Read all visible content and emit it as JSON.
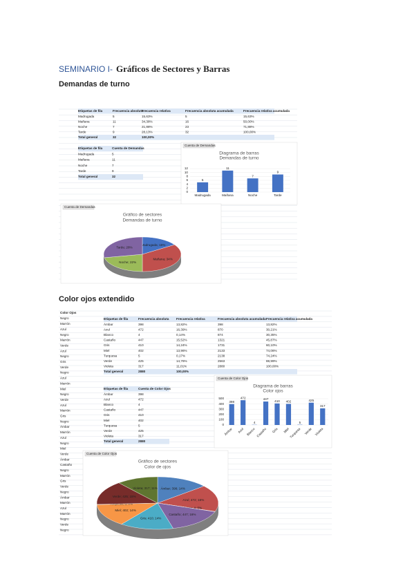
{
  "header": {
    "title_prefix": "SEMINARIO I-",
    "title": "Gráficos de Sectores y Barras"
  },
  "section1": {
    "heading": "Demandas de turno",
    "freq_table": {
      "columns": [
        "Etiquetas de fila",
        "Frecuencia absoluta",
        "Frecuencia relativa",
        "Frecuencia absoluta acumulada",
        "Frecuencia relativa acumulada"
      ],
      "rows": [
        [
          "Madrugada",
          5,
          "15,63%",
          5,
          "15,63%"
        ],
        [
          "Mañana",
          11,
          "34,38%",
          16,
          "50,00%"
        ],
        [
          "Noche",
          7,
          "21,88%",
          23,
          "71,88%"
        ],
        [
          "Tarde",
          9,
          "28,13%",
          32,
          "100,00%"
        ]
      ],
      "total": [
        "Total general",
        32,
        "100,00%"
      ]
    },
    "count_table": {
      "columns": [
        "Etiquetas de fila",
        "Cuenta de Demandas"
      ],
      "rows": [
        [
          "Madrugada",
          5
        ],
        [
          "Mañana",
          11
        ],
        [
          "Noche",
          7
        ],
        [
          "Tarde",
          9
        ]
      ],
      "total": [
        "Total general",
        32
      ]
    },
    "bar_chart": {
      "tab": "Cuenta de Demandas",
      "title": "Diagrama de barras",
      "subtitle": "Demandas de turno",
      "ylim": [
        0,
        12
      ],
      "yticks": [
        0,
        2,
        4,
        6,
        8,
        10,
        12
      ]
    },
    "pie_chart": {
      "tab": "Cuenta de Demandas",
      "title": "Gráfico de sectores",
      "subtitle": "Demandas de turno",
      "slice_labels": [
        "Madrugada; 16%",
        "Mañana; 34%",
        "Noche; 22%",
        "Tarde; 28%"
      ]
    }
  },
  "section2": {
    "heading": "Color ojos extendido",
    "raw_column": {
      "header": "Color Ojos",
      "values": [
        "Negro",
        "Marrón",
        "Azul",
        "Negro",
        "Marrón",
        "Verde",
        "Azul",
        "Negro",
        "Gris",
        "Verde",
        "Negro",
        "Azul",
        "Marrón",
        "Miel",
        "Negro",
        "Verde",
        "Azul",
        "Marrón",
        "Gris",
        "Negro",
        "Ámbar",
        "Marrón",
        "Azul",
        "Negro",
        "Miel",
        "Verde",
        "Ámbar",
        "Castaño",
        "Negro",
        "Marrón",
        "Gris",
        "Verde",
        "Negro",
        "Ámbar",
        "Marrón",
        "Azul",
        "Marrón",
        "Negro",
        "Verde",
        "Negro"
      ]
    },
    "freq_table": {
      "columns": [
        "Etiquetas de fila",
        "Frecuencia absoluta",
        "Frecuencia relativa",
        "Frecuencia absoluta acumulada",
        "Frecuencia relativa acumulada"
      ],
      "rows": [
        [
          "Ámbar",
          398,
          "13,82%",
          398,
          "13,82%"
        ],
        [
          "Azul",
          472,
          "16,39%",
          870,
          "30,21%"
        ],
        [
          "Blanco",
          4,
          "0,14%",
          874,
          "30,35%"
        ],
        [
          "Castaño",
          447,
          "15,52%",
          1321,
          "45,87%"
        ],
        [
          "Gris",
          410,
          "14,24%",
          1731,
          "60,10%"
        ],
        [
          "Miel",
          402,
          "13,96%",
          2133,
          "74,06%"
        ],
        [
          "Turquesa",
          5,
          "0,17%",
          2138,
          "74,24%"
        ],
        [
          "Verde",
          425,
          "14,76%",
          2563,
          "88,99%"
        ],
        [
          "Violeta",
          317,
          "11,01%",
          2880,
          "100,00%"
        ]
      ],
      "total": [
        "Total general",
        2880,
        "100,00%"
      ]
    },
    "count_table": {
      "columns": [
        "Etiquetas de fila",
        "Cuenta de Color Ojos"
      ],
      "rows": [
        [
          "Ámbar",
          398
        ],
        [
          "Azul",
          472
        ],
        [
          "Blanco",
          4
        ],
        [
          "Castaño",
          447
        ],
        [
          "Gris",
          410
        ],
        [
          "Miel",
          402
        ],
        [
          "Turquesa",
          5
        ],
        [
          "Verde",
          425
        ],
        [
          "Violeta",
          317
        ]
      ],
      "total": [
        "Total general",
        2880
      ]
    },
    "bar_chart": {
      "tab": "Cuenta de Color Ojos",
      "title": "Diagrama de barras",
      "subtitle": "Color ojos",
      "ylim": [
        0,
        500
      ],
      "yticks": [
        0,
        100,
        200,
        300,
        400,
        500
      ]
    },
    "pie_chart": {
      "tab": "Cuenta de Color Ojos",
      "title": "Gráfico de sectores",
      "subtitle": "Color de ojos",
      "slice_labels": [
        "Ámbar; 398; 14%",
        "Azul; 472; 16%",
        "Blanco; 4; 0%",
        "Castaño; 447; 16%",
        "Gris; 410; 14%",
        "Miel; 402; 14%",
        "Turquesa; 5; 0%",
        "Verde; 425; 15%",
        "Violeta; 317; 11%"
      ]
    }
  }
}
